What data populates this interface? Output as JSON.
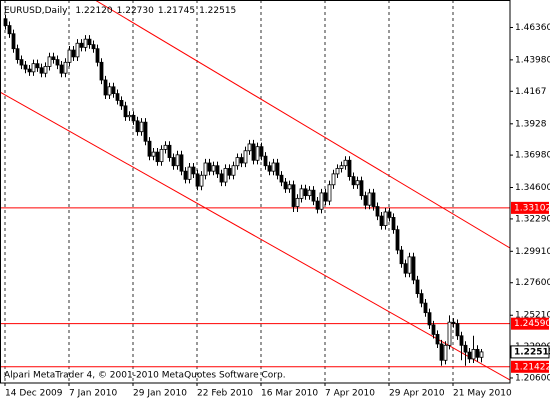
{
  "chart_data": {
    "type": "candlestick",
    "title": "EURUSD,Daily",
    "last_value_labels": [
      "1.22120",
      "1.22730",
      "1.21745",
      "1.22515"
    ],
    "footer": "Alpari MetaTrader 4, © 2001-2010 MetaQuotes Software Corp.",
    "bull_color": "#ffffff",
    "bear_color": "#000000",
    "level_color": "#ff0000",
    "ylim": [
      1.2023,
      1.4838
    ],
    "yticks": [
      {
        "value": 1.4636,
        "label": "1.46360"
      },
      {
        "value": 1.4398,
        "label": "1.43980"
      },
      1.4167,
      1.3928,
      {
        "value": 1.3698,
        "label": "1.36980"
      },
      {
        "value": 1.346,
        "label": "1.34600"
      },
      {
        "value": 1.3229,
        "label": "1.32290"
      },
      {
        "value": 1.2991,
        "label": "1.29910"
      },
      {
        "value": 1.276,
        "label": "1.27600"
      },
      {
        "value": 1.2521,
        "label": "1.25210"
      },
      {
        "value": 1.229,
        "label": "1.22900"
      },
      {
        "value": 1.206,
        "label": "1.20600"
      }
    ],
    "levels": [
      1.33102,
      {
        "value": 1.2459,
        "label": "1.24590"
      },
      1.21422
    ],
    "categories": [
      "14 Dec 2009",
      null,
      null,
      null,
      null,
      null,
      null,
      null,
      null,
      null,
      null,
      null,
      null,
      null,
      null,
      null,
      "7 Jan 2010",
      null,
      null,
      null,
      null,
      null,
      null,
      null,
      null,
      null,
      null,
      null,
      null,
      null,
      null,
      null,
      "29 Jan 2010",
      null,
      null,
      null,
      null,
      null,
      null,
      null,
      null,
      null,
      null,
      null,
      null,
      null,
      null,
      null,
      "22 Feb 2010",
      null,
      null,
      null,
      null,
      null,
      null,
      null,
      null,
      null,
      null,
      null,
      null,
      null,
      null,
      null,
      "16 Mar 2010",
      null,
      null,
      null,
      null,
      null,
      null,
      null,
      null,
      null,
      null,
      null,
      null,
      null,
      null,
      null,
      "7 Apr 2010",
      null,
      null,
      null,
      null,
      null,
      null,
      null,
      null,
      null,
      null,
      null,
      null,
      null,
      null,
      null,
      "29 Apr 2010",
      null,
      null,
      null,
      null,
      null,
      null,
      null,
      null,
      null,
      null,
      null,
      null,
      null,
      null,
      null,
      "21 May 2010",
      null,
      null,
      null,
      null,
      null,
      null,
      null
    ],
    "ohlc": [
      [
        1.47,
        1.473,
        1.462,
        1.465
      ],
      [
        1.465,
        1.468,
        1.456,
        1.459
      ],
      [
        1.459,
        1.462,
        1.445,
        1.448
      ],
      [
        1.448,
        1.451,
        1.437,
        1.44
      ],
      [
        1.44,
        1.443,
        1.433,
        1.436
      ],
      [
        1.436,
        1.439,
        1.43,
        1.433
      ],
      [
        1.433,
        1.436,
        1.428,
        1.431
      ],
      [
        1.431,
        1.44,
        1.428,
        1.437
      ],
      [
        1.437,
        1.44,
        1.431,
        1.434
      ],
      [
        1.434,
        1.437,
        1.427,
        1.43
      ],
      [
        1.43,
        1.438,
        1.427,
        1.435
      ],
      [
        1.435,
        1.445,
        1.432,
        1.442
      ],
      [
        1.442,
        1.445,
        1.437,
        1.44
      ],
      [
        1.44,
        1.443,
        1.433,
        1.436
      ],
      [
        1.436,
        1.439,
        1.427,
        1.43
      ],
      [
        1.43,
        1.441,
        1.427,
        1.438
      ],
      [
        1.438,
        1.45,
        1.435,
        1.447
      ],
      [
        1.447,
        1.45,
        1.439,
        1.442
      ],
      [
        1.442,
        1.455,
        1.439,
        1.452
      ],
      [
        1.452,
        1.455,
        1.446,
        1.449
      ],
      [
        1.449,
        1.458,
        1.446,
        1.455
      ],
      [
        1.455,
        1.458,
        1.448,
        1.451
      ],
      [
        1.451,
        1.454,
        1.445,
        1.448
      ],
      [
        1.448,
        1.451,
        1.435,
        1.438
      ],
      [
        1.438,
        1.441,
        1.422,
        1.425
      ],
      [
        1.425,
        1.428,
        1.411,
        1.414
      ],
      [
        1.414,
        1.423,
        1.411,
        1.42
      ],
      [
        1.42,
        1.423,
        1.412,
        1.415
      ],
      [
        1.415,
        1.418,
        1.407,
        1.41
      ],
      [
        1.41,
        1.413,
        1.403,
        1.406
      ],
      [
        1.406,
        1.409,
        1.395,
        1.398
      ],
      [
        1.398,
        1.402,
        1.395,
        1.399
      ],
      [
        1.399,
        1.402,
        1.392,
        1.395
      ],
      [
        1.395,
        1.398,
        1.384,
        1.387
      ],
      [
        1.387,
        1.397,
        1.384,
        1.394
      ],
      [
        1.394,
        1.397,
        1.377,
        1.38
      ],
      [
        1.38,
        1.383,
        1.366,
        1.369
      ],
      [
        1.369,
        1.375,
        1.366,
        1.372
      ],
      [
        1.372,
        1.375,
        1.362,
        1.365
      ],
      [
        1.365,
        1.377,
        1.362,
        1.374
      ],
      [
        1.374,
        1.38,
        1.371,
        1.377
      ],
      [
        1.377,
        1.38,
        1.365,
        1.368
      ],
      [
        1.368,
        1.371,
        1.359,
        1.362
      ],
      [
        1.362,
        1.373,
        1.359,
        1.37
      ],
      [
        1.37,
        1.373,
        1.355,
        1.358
      ],
      [
        1.358,
        1.361,
        1.349,
        1.352
      ],
      [
        1.352,
        1.364,
        1.349,
        1.361
      ],
      [
        1.361,
        1.364,
        1.353,
        1.356
      ],
      [
        1.356,
        1.359,
        1.344,
        1.347
      ],
      [
        1.347,
        1.358,
        1.344,
        1.355
      ],
      [
        1.355,
        1.367,
        1.352,
        1.364
      ],
      [
        1.364,
        1.367,
        1.355,
        1.358
      ],
      [
        1.358,
        1.365,
        1.355,
        1.362
      ],
      [
        1.362,
        1.365,
        1.353,
        1.356
      ],
      [
        1.356,
        1.359,
        1.347,
        1.35
      ],
      [
        1.35,
        1.363,
        1.347,
        1.36
      ],
      [
        1.36,
        1.363,
        1.352,
        1.355
      ],
      [
        1.355,
        1.365,
        1.352,
        1.362
      ],
      [
        1.362,
        1.371,
        1.359,
        1.368
      ],
      [
        1.368,
        1.371,
        1.361,
        1.364
      ],
      [
        1.364,
        1.376,
        1.361,
        1.373
      ],
      [
        1.373,
        1.381,
        1.37,
        1.378
      ],
      [
        1.378,
        1.381,
        1.363,
        1.366
      ],
      [
        1.366,
        1.379,
        1.363,
        1.376
      ],
      [
        1.376,
        1.379,
        1.366,
        1.369
      ],
      [
        1.369,
        1.372,
        1.359,
        1.362
      ],
      [
        1.362,
        1.365,
        1.355,
        1.358
      ],
      [
        1.358,
        1.367,
        1.355,
        1.364
      ],
      [
        1.364,
        1.367,
        1.352,
        1.355
      ],
      [
        1.355,
        1.358,
        1.347,
        1.35
      ],
      [
        1.35,
        1.353,
        1.342,
        1.345
      ],
      [
        1.345,
        1.351,
        1.342,
        1.348
      ],
      [
        1.348,
        1.351,
        1.328,
        1.332
      ],
      [
        1.332,
        1.341,
        1.328,
        1.338
      ],
      [
        1.338,
        1.348,
        1.335,
        1.345
      ],
      [
        1.345,
        1.348,
        1.337,
        1.34
      ],
      [
        1.34,
        1.347,
        1.337,
        1.344
      ],
      [
        1.344,
        1.347,
        1.333,
        1.336
      ],
      [
        1.336,
        1.339,
        1.327,
        1.33
      ],
      [
        1.33,
        1.345,
        1.327,
        1.342
      ],
      [
        1.342,
        1.345,
        1.333,
        1.336
      ],
      [
        1.336,
        1.351,
        1.333,
        1.348
      ],
      [
        1.348,
        1.359,
        1.345,
        1.356
      ],
      [
        1.356,
        1.363,
        1.353,
        1.36
      ],
      [
        1.36,
        1.365,
        1.357,
        1.362
      ],
      [
        1.362,
        1.369,
        1.359,
        1.366
      ],
      [
        1.366,
        1.369,
        1.351,
        1.354
      ],
      [
        1.354,
        1.357,
        1.345,
        1.348
      ],
      [
        1.348,
        1.354,
        1.345,
        1.351
      ],
      [
        1.351,
        1.354,
        1.337,
        1.34
      ],
      [
        1.34,
        1.343,
        1.33,
        1.333
      ],
      [
        1.333,
        1.345,
        1.33,
        1.342
      ],
      [
        1.342,
        1.345,
        1.329,
        1.332
      ],
      [
        1.332,
        1.335,
        1.322,
        1.325
      ],
      [
        1.325,
        1.328,
        1.315,
        1.318
      ],
      [
        1.318,
        1.331,
        1.315,
        1.328
      ],
      [
        1.328,
        1.331,
        1.321,
        1.324
      ],
      [
        1.324,
        1.327,
        1.312,
        1.315
      ],
      [
        1.315,
        1.318,
        1.297,
        1.3
      ],
      [
        1.3,
        1.303,
        1.287,
        1.29
      ],
      [
        1.29,
        1.293,
        1.28,
        1.283
      ],
      [
        1.283,
        1.298,
        1.28,
        1.295
      ],
      [
        1.295,
        1.298,
        1.275,
        1.278
      ],
      [
        1.278,
        1.281,
        1.265,
        1.268
      ],
      [
        1.268,
        1.271,
        1.258,
        1.261
      ],
      [
        1.261,
        1.264,
        1.251,
        1.254
      ],
      [
        1.254,
        1.257,
        1.242,
        1.245
      ],
      [
        1.245,
        1.248,
        1.235,
        1.238
      ],
      [
        1.238,
        1.241,
        1.228,
        1.231
      ],
      [
        1.231,
        1.234,
        1.215,
        1.219
      ],
      [
        1.219,
        1.233,
        1.216,
        1.23
      ],
      [
        1.23,
        1.252,
        1.227,
        1.247
      ],
      [
        1.247,
        1.25,
        1.243,
        1.246
      ],
      [
        1.246,
        1.249,
        1.234,
        1.237
      ],
      [
        1.237,
        1.24,
        1.219,
        1.23
      ],
      [
        1.23,
        1.233,
        1.215,
        1.225
      ],
      [
        1.225,
        1.228,
        1.217,
        1.22
      ],
      [
        1.22,
        1.237,
        1.217,
        1.227
      ],
      [
        1.227,
        1.23,
        1.218,
        1.2212
      ],
      [
        1.2212,
        1.2273,
        1.21745,
        1.22515
      ]
    ]
  }
}
